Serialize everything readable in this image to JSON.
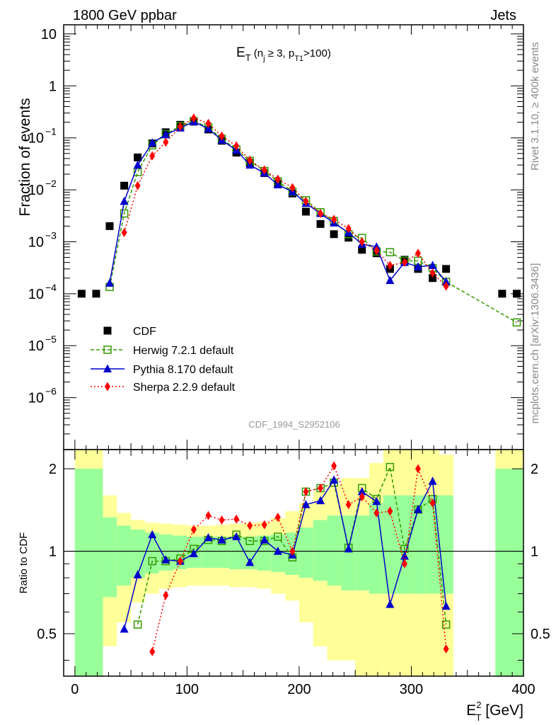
{
  "header": {
    "left": "1800 GeV ppbar",
    "right": "Jets"
  },
  "side_labels": {
    "rivet": "Rivet 3.1.10, ≥ 400k events",
    "mcplots": "mcplots.cern.ch [arXiv:1306.3436]"
  },
  "watermark": "CDF_1994_S2952106",
  "chart_data": {
    "type": "scatter",
    "title": {
      "main": "E",
      "sub_t": "T",
      "rest": " (n",
      "sub_j": "j",
      "ge": " ≥ 3, p",
      "sub_t1": "T1",
      "end": ">100)"
    },
    "ylabel": "Fraction of events",
    "ratio_ylabel": "Ratio to CDF",
    "xlabel": {
      "main": "E",
      "sup": "2",
      "sub": "T",
      "unit": " [GeV]"
    },
    "xlim": [
      -10,
      400
    ],
    "ylim": [
      1e-07,
      15
    ],
    "ratio_ylim": [
      0.35,
      2.35
    ],
    "log_y": true,
    "x_ticks": [
      0,
      100,
      200,
      300,
      400
    ],
    "y_ticks": [
      {
        "v": 10,
        "base": "10",
        "exp": ""
      },
      {
        "v": 1,
        "base": "1",
        "exp": ""
      },
      {
        "v": 0.1,
        "base": "10",
        "exp": "−1"
      },
      {
        "v": 0.01,
        "base": "10",
        "exp": "−2"
      },
      {
        "v": 0.001,
        "base": "10",
        "exp": "−3"
      },
      {
        "v": 0.0001,
        "base": "10",
        "exp": "−4"
      },
      {
        "v": 1e-05,
        "base": "10",
        "exp": "−5"
      },
      {
        "v": 1e-06,
        "base": "10",
        "exp": "−6"
      }
    ],
    "ratio_ticks": [
      "0.5",
      "1",
      "2"
    ],
    "legend": {
      "position": "bottom-left"
    },
    "series": [
      {
        "name": "CDF",
        "color": "#000000",
        "marker": "square-filled",
        "x": [
          6,
          19,
          31,
          44,
          56,
          69,
          81,
          94,
          106,
          119,
          131,
          144,
          156,
          169,
          181,
          194,
          206,
          219,
          231,
          244,
          256,
          269,
          281,
          294,
          306,
          319,
          331,
          381,
          394
        ],
        "y": [
          0.0001,
          0.0001,
          0.002,
          0.012,
          0.042,
          0.078,
          0.128,
          0.178,
          0.205,
          0.145,
          0.088,
          0.052,
          0.033,
          0.021,
          0.013,
          0.0085,
          0.0038,
          0.0022,
          0.0014,
          0.0012,
          0.0007,
          0.0006,
          0.0003,
          0.00045,
          0.0003,
          0.0002,
          0.0003,
          0.0001,
          0.0001
        ]
      },
      {
        "name": "Herwig 7.2.1 default",
        "color": "#339900",
        "marker": "square-open",
        "dash": "5,3",
        "x": [
          31,
          44,
          56,
          69,
          81,
          94,
          106,
          119,
          131,
          144,
          156,
          169,
          181,
          194,
          206,
          219,
          231,
          244,
          256,
          269,
          281,
          294,
          306,
          319,
          331,
          394
        ],
        "y": [
          0.000135,
          0.0035,
          0.022,
          0.072,
          0.118,
          0.168,
          0.21,
          0.16,
          0.096,
          0.06,
          0.036,
          0.023,
          0.0145,
          0.0092,
          0.0063,
          0.0037,
          0.0025,
          0.0014,
          0.00118,
          0.00065,
          0.00063,
          0.00043,
          0.00043,
          0.00031,
          0.00017,
          2.8e-05
        ],
        "ratio_x": [
          56,
          69,
          81,
          94,
          106,
          119,
          131,
          144,
          156,
          169,
          181,
          194,
          206,
          219,
          231,
          244,
          256,
          269,
          281,
          294,
          306,
          319,
          331
        ],
        "ratio": [
          0.54,
          0.92,
          0.92,
          0.94,
          1.02,
          1.1,
          1.09,
          1.15,
          1.09,
          1.09,
          1.13,
          0.95,
          1.65,
          1.7,
          1.78,
          1.03,
          1.7,
          1.55,
          2.03,
          1.02,
          1.42,
          1.55,
          0.54
        ]
      },
      {
        "name": "Pythia 8.170 default",
        "color": "#0000cc",
        "marker": "triangle",
        "dash": "",
        "x": [
          31,
          44,
          56,
          69,
          81,
          94,
          106,
          119,
          131,
          144,
          156,
          169,
          181,
          194,
          206,
          219,
          231,
          244,
          256,
          269,
          281,
          294,
          306,
          319,
          331
        ],
        "y": [
          0.00016,
          0.006,
          0.03,
          0.08,
          0.115,
          0.155,
          0.205,
          0.15,
          0.09,
          0.058,
          0.03,
          0.021,
          0.0125,
          0.0092,
          0.0055,
          0.0035,
          0.0023,
          0.0015,
          0.0009,
          0.0008,
          0.00018,
          0.0004,
          0.00033,
          0.00035,
          0.00017
        ],
        "ratio_x": [
          44,
          56,
          69,
          81,
          94,
          106,
          119,
          131,
          144,
          156,
          169,
          181,
          194,
          206,
          219,
          231,
          244,
          256,
          269,
          281,
          294,
          306,
          319,
          331
        ],
        "ratio": [
          0.52,
          0.82,
          1.15,
          0.93,
          0.92,
          0.98,
          1.12,
          1.1,
          1.13,
          0.91,
          1.1,
          1.0,
          0.97,
          1.48,
          1.53,
          1.82,
          1.02,
          1.65,
          1.52,
          0.64,
          0.96,
          1.42,
          1.8,
          0.63
        ]
      },
      {
        "name": "Sherpa 2.2.9 default",
        "color": "#ff0000",
        "marker": "diamond",
        "dash": "2,3",
        "x": [
          44,
          56,
          69,
          81,
          94,
          106,
          119,
          131,
          144,
          156,
          169,
          181,
          194,
          206,
          219,
          231,
          244,
          256,
          269,
          281,
          294,
          306,
          319,
          331
        ],
        "y": [
          0.0015,
          0.012,
          0.045,
          0.082,
          0.165,
          0.24,
          0.19,
          0.108,
          0.07,
          0.037,
          0.024,
          0.016,
          0.011,
          0.006,
          0.0035,
          0.0027,
          0.0018,
          0.001,
          0.00068,
          0.00035,
          0.0004,
          0.0006,
          0.00025,
          0.00014
        ],
        "ratio_x": [
          69,
          81,
          94,
          106,
          119,
          131,
          144,
          156,
          169,
          181,
          194,
          206,
          219,
          231,
          244,
          256,
          269,
          281,
          294,
          306,
          319,
          331
        ],
        "ratio": [
          0.43,
          0.69,
          0.92,
          1.2,
          1.35,
          1.3,
          1.31,
          1.24,
          1.25,
          1.33,
          1.0,
          1.65,
          1.7,
          2.05,
          1.48,
          1.58,
          1.38,
          1.4,
          0.9,
          2.0,
          1.5,
          0.44
        ]
      }
    ],
    "ratio_bands": {
      "bins": [
        [
          0,
          25
        ],
        [
          25,
          37.5
        ],
        [
          37.5,
          50
        ],
        [
          50,
          62.5
        ],
        [
          62.5,
          75
        ],
        [
          75,
          87.5
        ],
        [
          87.5,
          100
        ],
        [
          100,
          112.5
        ],
        [
          112.5,
          125
        ],
        [
          125,
          137.5
        ],
        [
          137.5,
          150
        ],
        [
          150,
          162.5
        ],
        [
          162.5,
          175
        ],
        [
          175,
          187.5
        ],
        [
          187.5,
          200
        ],
        [
          200,
          212.5
        ],
        [
          212.5,
          225
        ],
        [
          225,
          237.5
        ],
        [
          237.5,
          250
        ],
        [
          250,
          262.5
        ],
        [
          262.5,
          275
        ],
        [
          275,
          287.5
        ],
        [
          287.5,
          300
        ],
        [
          300,
          312.5
        ],
        [
          312.5,
          325
        ],
        [
          325,
          337.5
        ],
        [
          375,
          400
        ]
      ],
      "green_lo": [
        0.35,
        0.68,
        0.75,
        0.8,
        0.83,
        0.85,
        0.86,
        0.87,
        0.87,
        0.87,
        0.86,
        0.86,
        0.85,
        0.84,
        0.82,
        0.8,
        0.78,
        0.75,
        0.72,
        0.72,
        0.7,
        0.7,
        0.7,
        0.7,
        0.7,
        0.7,
        0.35
      ],
      "green_hi": [
        2.0,
        1.33,
        1.24,
        1.2,
        1.17,
        1.15,
        1.14,
        1.13,
        1.13,
        1.13,
        1.13,
        1.13,
        1.14,
        1.15,
        1.17,
        1.22,
        1.3,
        1.35,
        1.35,
        1.35,
        1.5,
        1.6,
        1.6,
        1.6,
        1.6,
        1.6,
        2.0
      ],
      "yellow_lo": [
        0.35,
        0.45,
        0.55,
        0.65,
        0.7,
        0.73,
        0.74,
        0.75,
        0.75,
        0.75,
        0.74,
        0.74,
        0.73,
        0.7,
        0.66,
        0.55,
        0.45,
        0.4,
        0.4,
        0.35,
        0.35,
        0.35,
        0.35,
        0.35,
        0.35,
        0.35,
        0.35
      ],
      "yellow_hi": [
        2.35,
        1.6,
        1.38,
        1.3,
        1.27,
        1.26,
        1.25,
        1.24,
        1.24,
        1.25,
        1.26,
        1.27,
        1.28,
        1.32,
        1.4,
        1.5,
        1.65,
        1.75,
        1.85,
        1.85,
        2.1,
        2.35,
        2.35,
        2.35,
        2.35,
        2.25,
        2.35
      ]
    }
  }
}
